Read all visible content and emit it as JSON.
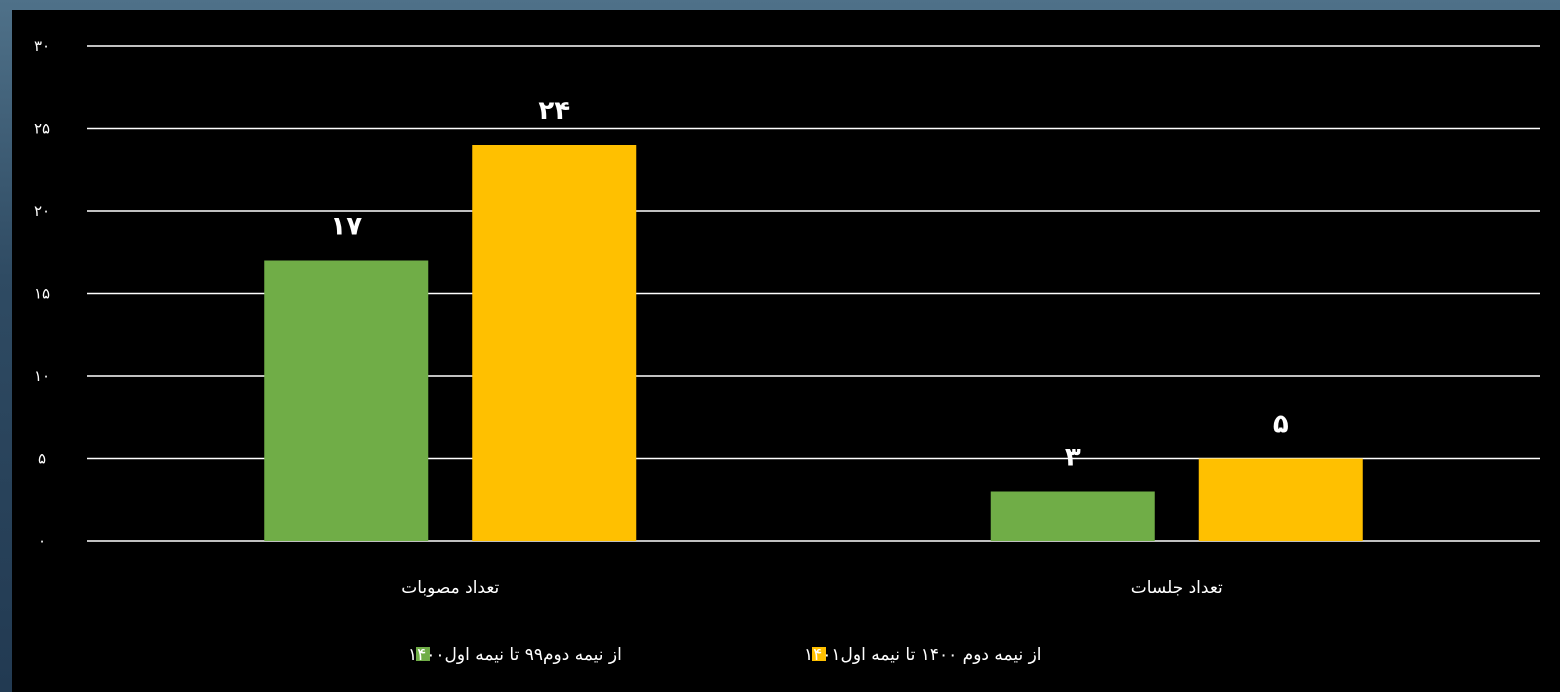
{
  "chart_data": {
    "type": "bar",
    "title": "",
    "xlabel": "",
    "ylabel": "",
    "ylim": [
      0,
      30
    ],
    "yticks": [
      0,
      5,
      10,
      15,
      20,
      25,
      30
    ],
    "ytick_labels": [
      "۰",
      "۵",
      "۱۰",
      "۱۵",
      "۲۰",
      "۲۵",
      "۳۰"
    ],
    "grid": true,
    "legend_position": "bottom",
    "categories": [
      "تعداد مصوبات",
      "تعداد جلسات"
    ],
    "series": [
      {
        "name": "از نیمه دوم۹۹ تا نیمه اول۱۴۰۰",
        "color": "#70ad47",
        "values": [
          17,
          3
        ],
        "labels": [
          "۱۷",
          "۳"
        ]
      },
      {
        "name": "از نیمه دوم ۱۴۰۰ تا نیمه اول۱۴۰۱",
        "color": "#ffc000",
        "values": [
          24,
          5
        ],
        "labels": [
          "۲۴",
          "۵"
        ]
      }
    ]
  }
}
